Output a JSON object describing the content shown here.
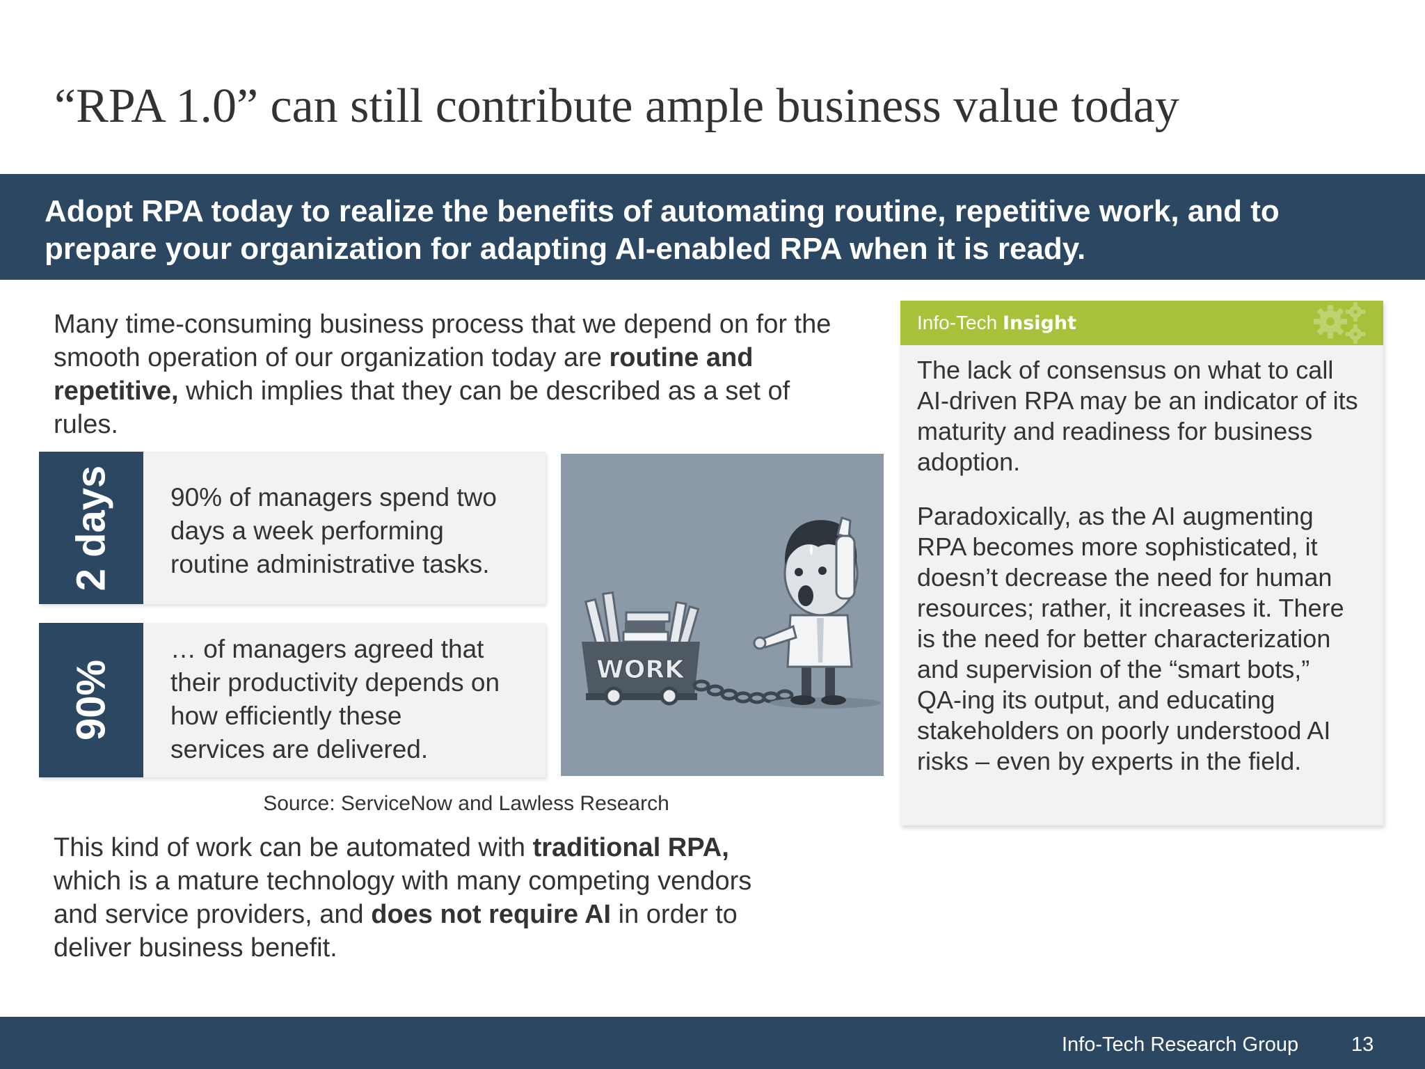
{
  "slide": {
    "title": "“RPA 1.0” can still contribute ample business value today"
  },
  "banner": {
    "line1": "Adopt RPA today to realize the benefits of automating routine, repetitive work, and to",
    "line2": "prepare your organization for adapting AI-enabled RPA when it is ready."
  },
  "intro": {
    "line1": "Many time-consuming business process that we depend on for the",
    "line2_plain": "smooth operation of our organization today are ",
    "line2_bold": "routine and",
    "line3_bold": "repetitive,",
    "line3_plain": " which implies that they can be described as a set of",
    "line4": "rules."
  },
  "stats": [
    {
      "label": "2 days",
      "lines": [
        "90% of managers spend two",
        "days a week performing",
        "routine administrative tasks."
      ]
    },
    {
      "label": "90%",
      "lines": [
        "… of managers agreed that",
        "their productivity depends on",
        "how efficiently these",
        "services are delivered."
      ]
    }
  ],
  "illustration": {
    "cart_label": "WORK"
  },
  "source": "Source: ServiceNow and Lawless Research",
  "outro": {
    "line1_plain": "This kind of work can be automated with ",
    "line1_bold": "traditional RPA,",
    "line2": "which is a mature technology with many competing vendors",
    "line3_plain1": "and service providers, and ",
    "line3_bold": "does not require AI",
    "line3_plain2": " in order to",
    "line4": "deliver business benefit."
  },
  "insight": {
    "title_prefix": "Info-Tech ",
    "title_bold": "Insight",
    "para1": [
      "The lack of consensus on what to call",
      "AI-driven RPA may be an indicator of its",
      "maturity and readiness for business",
      "adoption."
    ],
    "para2": [
      "Paradoxically, as the AI augmenting",
      "RPA becomes more sophisticated, it",
      "doesn’t decrease the need for human",
      "resources; rather, it increases it. There",
      "is the need for better characterization",
      "and supervision of the “smart bots,”",
      "QA-ing its output, and educating",
      "stakeholders on poorly understood AI",
      "risks – even by experts in the field."
    ]
  },
  "footer": {
    "organization": "Info-Tech Research Group",
    "page_number": "13"
  },
  "colors": {
    "navy": "#2b4761",
    "insight_green": "#a7c13a",
    "card_gray": "#f2f2f2",
    "illustration_bg": "#8c9aa8"
  },
  "icons": {
    "insight_header": "gears-icon"
  }
}
